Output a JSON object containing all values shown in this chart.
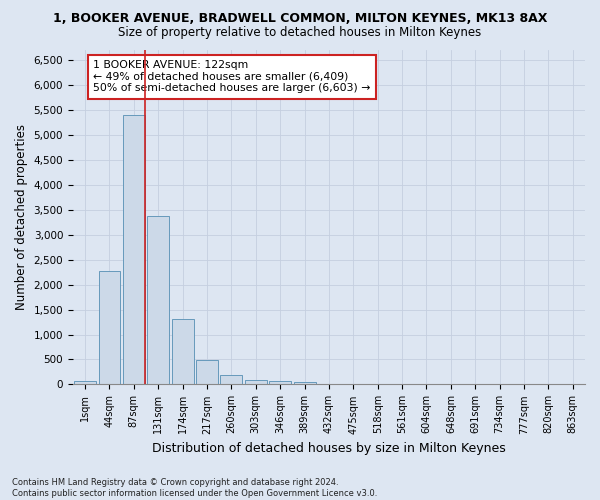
{
  "title": "1, BOOKER AVENUE, BRADWELL COMMON, MILTON KEYNES, MK13 8AX",
  "subtitle": "Size of property relative to detached houses in Milton Keynes",
  "xlabel": "Distribution of detached houses by size in Milton Keynes",
  "ylabel": "Number of detached properties",
  "footer_line1": "Contains HM Land Registry data © Crown copyright and database right 2024.",
  "footer_line2": "Contains public sector information licensed under the Open Government Licence v3.0.",
  "bar_labels": [
    "1sqm",
    "44sqm",
    "87sqm",
    "131sqm",
    "174sqm",
    "217sqm",
    "260sqm",
    "303sqm",
    "346sqm",
    "389sqm",
    "432sqm",
    "475sqm",
    "518sqm",
    "561sqm",
    "604sqm",
    "648sqm",
    "691sqm",
    "734sqm",
    "777sqm",
    "820sqm",
    "863sqm"
  ],
  "bar_values": [
    75,
    2280,
    5400,
    3380,
    1310,
    480,
    185,
    85,
    60,
    40,
    0,
    0,
    0,
    0,
    0,
    0,
    0,
    0,
    0,
    0,
    0
  ],
  "bar_color": "#ccd9e8",
  "bar_edge_color": "#6699bb",
  "grid_color": "#c5cfe0",
  "background_color": "#dde6f2",
  "vline_color": "#cc2222",
  "annotation_text": "1 BOOKER AVENUE: 122sqm\n← 49% of detached houses are smaller (6,409)\n50% of semi-detached houses are larger (6,603) →",
  "annotation_box_color": "#ffffff",
  "annotation_box_edge": "#cc2222",
  "ylim": [
    0,
    6700
  ],
  "yticks": [
    0,
    500,
    1000,
    1500,
    2000,
    2500,
    3000,
    3500,
    4000,
    4500,
    5000,
    5500,
    6000,
    6500
  ]
}
